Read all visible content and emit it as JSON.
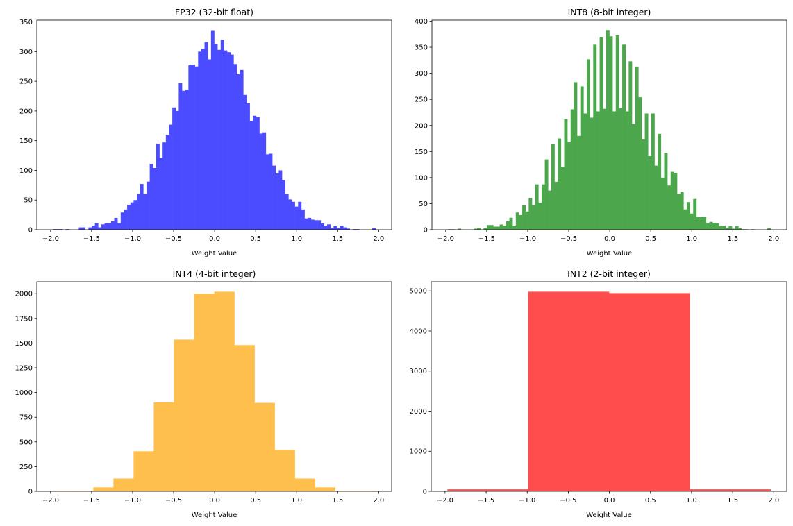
{
  "chart_data": [
    {
      "type": "bar",
      "subtype": "histogram",
      "title": "FP32 (32-bit float)",
      "xlabel": "Weight Value",
      "ylabel": "",
      "color": "#4b4bff",
      "bin_range": [
        -1.971,
        1.961
      ],
      "xlim": [
        -2.168,
        2.158
      ],
      "ylim": [
        0,
        353
      ],
      "xticks": [
        "-2.0",
        "-1.5",
        "-1.0",
        "-0.5",
        "0.0",
        "0.5",
        "1.0",
        "1.5",
        "2.0"
      ],
      "xtick_values": [
        -2.0,
        -1.5,
        -1.0,
        -0.5,
        0.0,
        0.5,
        1.0,
        1.5,
        2.0
      ],
      "yticks": [
        "0",
        "50",
        "100",
        "150",
        "200",
        "250",
        "300",
        "350"
      ],
      "ytick_values": [
        0,
        50,
        100,
        150,
        200,
        250,
        300,
        350
      ],
      "values": [
        1,
        1,
        1,
        0,
        1,
        0,
        0,
        0,
        4,
        4,
        0,
        4,
        7,
        11,
        4,
        9,
        11,
        11,
        14,
        20,
        11,
        29,
        34,
        42,
        46,
        50,
        60,
        77,
        60,
        81,
        111,
        104,
        145,
        121,
        147,
        160,
        177,
        206,
        200,
        247,
        234,
        236,
        277,
        278,
        275,
        300,
        305,
        316,
        287,
        336,
        313,
        303,
        320,
        302,
        299,
        295,
        279,
        262,
        269,
        227,
        213,
        183,
        192,
        190,
        162,
        164,
        127,
        128,
        108,
        95,
        100,
        84,
        60,
        51,
        47,
        39,
        47,
        34,
        19,
        20,
        17,
        16,
        16,
        11,
        7,
        9,
        3,
        6,
        3,
        7,
        4,
        2,
        0,
        1,
        1,
        0,
        0,
        0,
        0,
        3
      ],
      "grid": false
    },
    {
      "type": "bar",
      "subtype": "histogram",
      "title": "INT8 (8-bit integer)",
      "xlabel": "Weight Value",
      "ylabel": "",
      "color": "#4ca64c",
      "bin_range": [
        -1.971,
        1.961
      ],
      "xlim": [
        -2.168,
        2.158
      ],
      "ylim": [
        0,
        402
      ],
      "xticks": [
        "-2.0",
        "-1.5",
        "-1.0",
        "-0.5",
        "0.0",
        "0.5",
        "1.0",
        "1.5",
        "2.0"
      ],
      "xtick_values": [
        -2.0,
        -1.5,
        -1.0,
        -0.5,
        0.0,
        0.5,
        1.0,
        1.5,
        2.0
      ],
      "yticks": [
        "0",
        "50",
        "100",
        "150",
        "200",
        "250",
        "300",
        "350",
        "400"
      ],
      "ytick_values": [
        0,
        50,
        100,
        150,
        200,
        250,
        300,
        350,
        400
      ],
      "values": [
        1,
        1,
        0,
        2,
        0,
        0,
        0,
        0,
        2,
        4,
        0,
        4,
        9,
        9,
        6,
        6,
        10,
        8,
        16,
        23,
        8,
        33,
        28,
        47,
        35,
        61,
        47,
        87,
        52,
        87,
        135,
        75,
        164,
        92,
        175,
        120,
        212,
        168,
        231,
        283,
        180,
        275,
        223,
        327,
        215,
        355,
        227,
        369,
        232,
        383,
        371,
        227,
        373,
        233,
        355,
        227,
        323,
        203,
        313,
        254,
        173,
        223,
        141,
        223,
        123,
        184,
        100,
        147,
        85,
        111,
        109,
        68,
        72,
        39,
        53,
        31,
        59,
        24,
        25,
        24,
        12,
        15,
        13,
        12,
        7,
        8,
        3,
        7,
        2,
        7,
        3,
        1,
        1,
        0,
        1,
        0,
        0,
        0,
        0,
        3
      ],
      "grid": false
    },
    {
      "type": "bar",
      "subtype": "histogram",
      "title": "INT4 (4-bit integer)",
      "xlabel": "Weight Value",
      "ylabel": "",
      "color": "#ffbf4c",
      "bin_range": [
        -1.971,
        1.961
      ],
      "xlim": [
        -2.168,
        2.158
      ],
      "ylim": [
        0,
        2121
      ],
      "xticks": [
        "-2.0",
        "-1.5",
        "-1.0",
        "-0.5",
        "0.0",
        "0.5",
        "1.0",
        "1.5",
        "2.0"
      ],
      "xtick_values": [
        -2.0,
        -1.5,
        -1.0,
        -0.5,
        0.0,
        0.5,
        1.0,
        1.5,
        2.0
      ],
      "yticks": [
        "0",
        "250",
        "500",
        "750",
        "1000",
        "1250",
        "1500",
        "1750",
        "2000"
      ],
      "ytick_values": [
        0,
        250,
        500,
        750,
        1000,
        1250,
        1500,
        1750,
        2000
      ],
      "values": [
        5,
        5,
        40,
        130,
        405,
        900,
        1535,
        2000,
        2020,
        1480,
        895,
        420,
        130,
        40,
        5,
        5
      ],
      "grid": false
    },
    {
      "type": "bar",
      "subtype": "histogram",
      "title": "INT2 (2-bit integer)",
      "xlabel": "Weight Value",
      "ylabel": "",
      "color": "#ff4c4c",
      "bin_range": [
        -1.971,
        1.961
      ],
      "xlim": [
        -2.168,
        2.158
      ],
      "ylim": [
        0,
        5229
      ],
      "xticks": [
        "-2.0",
        "-1.5",
        "-1.0",
        "-0.5",
        "0.0",
        "0.5",
        "1.0",
        "1.5",
        "2.0"
      ],
      "xtick_values": [
        -2.0,
        -1.5,
        -1.0,
        -0.5,
        0.0,
        0.5,
        1.0,
        1.5,
        2.0
      ],
      "yticks": [
        "0",
        "1000",
        "2000",
        "3000",
        "4000",
        "5000"
      ],
      "ytick_values": [
        0,
        1000,
        2000,
        3000,
        4000,
        5000
      ],
      "values": [
        50,
        4980,
        4945,
        50
      ],
      "grid": false
    }
  ]
}
